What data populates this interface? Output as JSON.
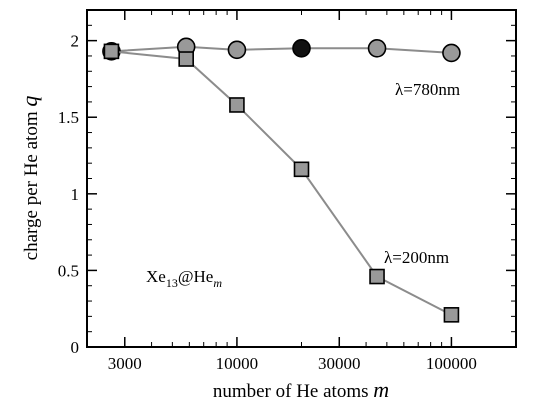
{
  "chart_data": {
    "type": "line",
    "title": "",
    "xlabel": "number of He atoms",
    "xlabel_var": "m",
    "ylabel": "charge per He atom",
    "ylabel_var": "q",
    "x_scale": "log",
    "xlim": [
      2000,
      200000
    ],
    "ylim": [
      0,
      2.2
    ],
    "x_ticks": [
      {
        "value": 3000,
        "label": "3000"
      },
      {
        "value": 10000,
        "label": "10000"
      },
      {
        "value": 30000,
        "label": "30000"
      },
      {
        "value": 100000,
        "label": "100000"
      }
    ],
    "y_ticks": [
      {
        "value": 0,
        "label": "0"
      },
      {
        "value": 0.5,
        "label": "0.5"
      },
      {
        "value": 1,
        "label": "1"
      },
      {
        "value": 1.5,
        "label": "1.5"
      },
      {
        "value": 2,
        "label": "2"
      }
    ],
    "grid": false,
    "series": [
      {
        "name": "λ=780nm",
        "marker": "circle",
        "color": "#999999",
        "line_color": "#8c8c8c",
        "points": [
          {
            "x": 2600,
            "y": 1.93
          },
          {
            "x": 5800,
            "y": 1.96
          },
          {
            "x": 10000,
            "y": 1.94
          },
          {
            "x": 20000,
            "y": 1.95,
            "highlight": true
          },
          {
            "x": 45000,
            "y": 1.95
          },
          {
            "x": 100000,
            "y": 1.92
          }
        ]
      },
      {
        "name": "λ=200nm",
        "marker": "square",
        "color": "#999999",
        "line_color": "#8c8c8c",
        "points": [
          {
            "x": 2600,
            "y": 1.93
          },
          {
            "x": 5800,
            "y": 1.88
          },
          {
            "x": 10000,
            "y": 1.58
          },
          {
            "x": 20000,
            "y": 1.16
          },
          {
            "x": 45000,
            "y": 0.46
          },
          {
            "x": 100000,
            "y": 0.21
          }
        ]
      }
    ],
    "highlight_color": "#111111",
    "annotation": {
      "base": "Xe",
      "sub": "13",
      "mid": "@He",
      "var_sub": "m"
    }
  }
}
